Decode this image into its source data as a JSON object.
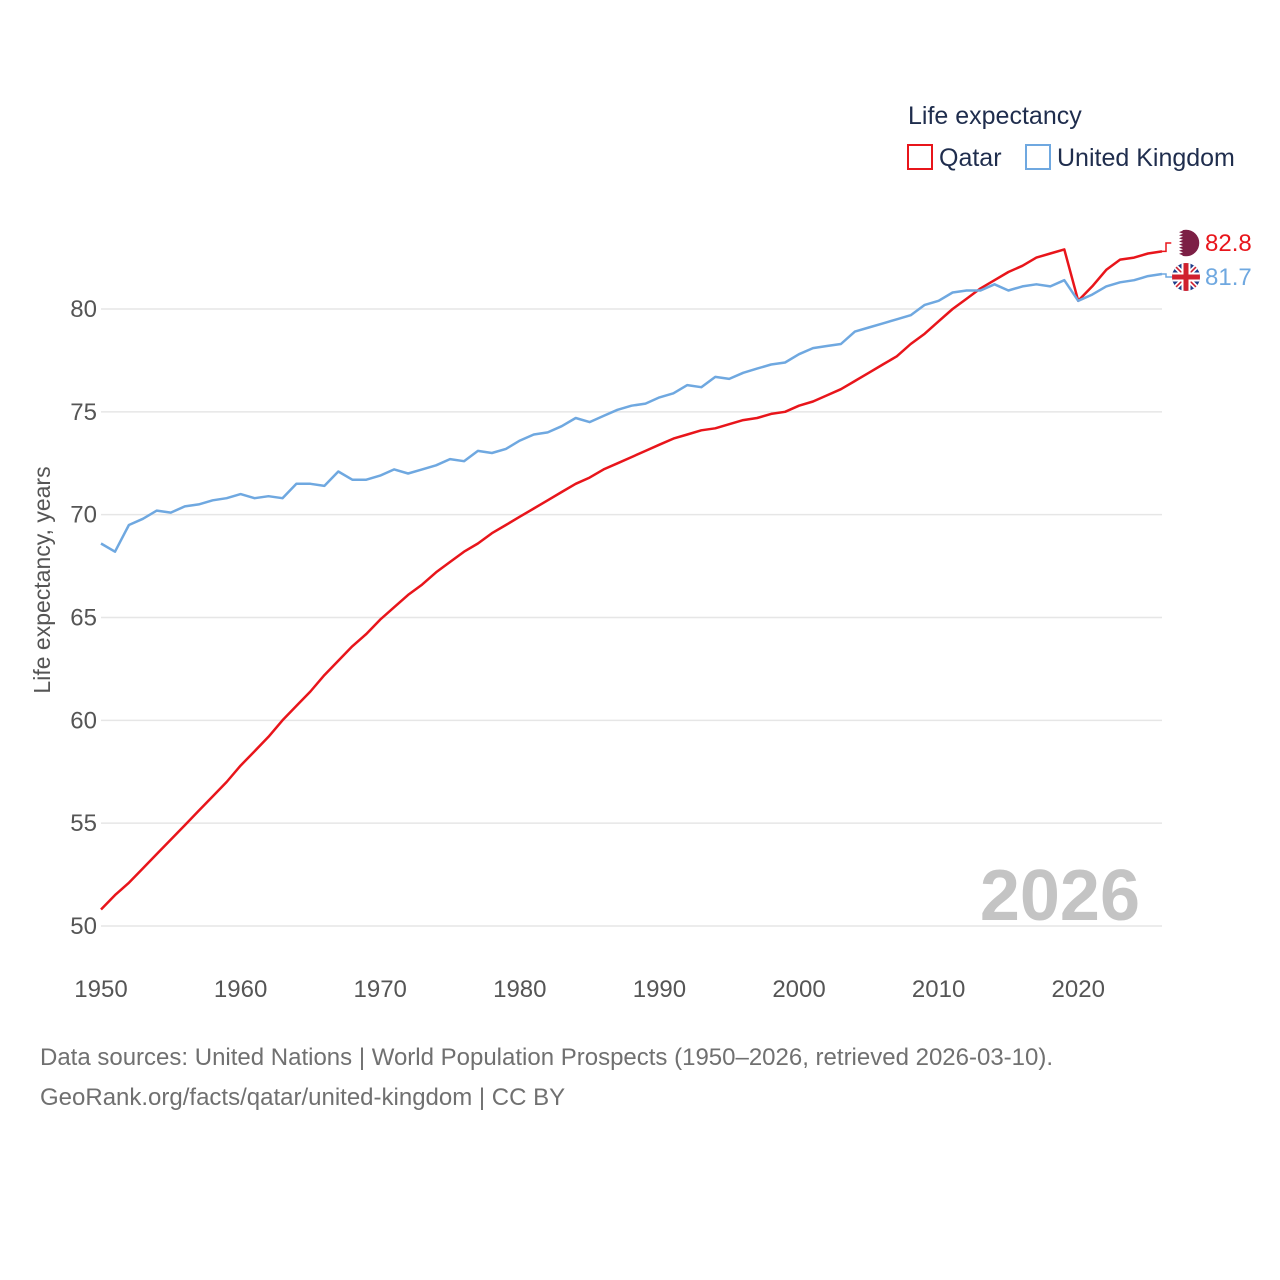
{
  "chart_data": {
    "type": "line",
    "title": "Life expectancy",
    "ylabel": "Life expectancy, years",
    "xlabel": "",
    "xlim": [
      1950,
      2026
    ],
    "ylim": [
      50,
      84.5
    ],
    "yticks": [
      50,
      55,
      60,
      65,
      70,
      75,
      80
    ],
    "xticks": [
      1950,
      1960,
      1970,
      1980,
      1990,
      2000,
      2010,
      2020
    ],
    "current_year": "2026",
    "legend_title": "Life expectancy",
    "legend_position": "top-right",
    "grid": true,
    "series": [
      {
        "name": "Qatar",
        "color": "#e8151b",
        "end_label": "82.8",
        "flag": "qatar-flag",
        "x": [
          1950,
          1951,
          1952,
          1953,
          1954,
          1955,
          1956,
          1957,
          1958,
          1959,
          1960,
          1961,
          1962,
          1963,
          1964,
          1965,
          1966,
          1967,
          1968,
          1969,
          1970,
          1971,
          1972,
          1973,
          1974,
          1975,
          1976,
          1977,
          1978,
          1979,
          1980,
          1981,
          1982,
          1983,
          1984,
          1985,
          1986,
          1987,
          1988,
          1989,
          1990,
          1991,
          1992,
          1993,
          1994,
          1995,
          1996,
          1997,
          1998,
          1999,
          2000,
          2001,
          2002,
          2003,
          2004,
          2005,
          2006,
          2007,
          2008,
          2009,
          2010,
          2011,
          2012,
          2013,
          2014,
          2015,
          2016,
          2017,
          2018,
          2019,
          2020,
          2021,
          2022,
          2023,
          2024,
          2025,
          2026
        ],
        "values": [
          50.8,
          51.5,
          52.1,
          52.8,
          53.5,
          54.2,
          54.9,
          55.6,
          56.3,
          57.0,
          57.8,
          58.5,
          59.2,
          60.0,
          60.7,
          61.4,
          62.2,
          62.9,
          63.6,
          64.2,
          64.9,
          65.5,
          66.1,
          66.6,
          67.2,
          67.7,
          68.2,
          68.6,
          69.1,
          69.5,
          69.9,
          70.3,
          70.7,
          71.1,
          71.5,
          71.8,
          72.2,
          72.5,
          72.8,
          73.1,
          73.4,
          73.7,
          73.9,
          74.1,
          74.2,
          74.4,
          74.6,
          74.7,
          74.9,
          75.0,
          75.3,
          75.5,
          75.8,
          76.1,
          76.5,
          76.9,
          77.3,
          77.7,
          78.3,
          78.8,
          79.4,
          80.0,
          80.5,
          81.0,
          81.4,
          81.8,
          82.1,
          82.5,
          82.7,
          82.9,
          80.4,
          81.1,
          81.9,
          82.4,
          82.5,
          82.7,
          82.8
        ]
      },
      {
        "name": "United Kingdom",
        "color": "#6fa8e0",
        "end_label": "81.7",
        "flag": "uk-flag",
        "x": [
          1950,
          1951,
          1952,
          1953,
          1954,
          1955,
          1956,
          1957,
          1958,
          1959,
          1960,
          1961,
          1962,
          1963,
          1964,
          1965,
          1966,
          1967,
          1968,
          1969,
          1970,
          1971,
          1972,
          1973,
          1974,
          1975,
          1976,
          1977,
          1978,
          1979,
          1980,
          1981,
          1982,
          1983,
          1984,
          1985,
          1986,
          1987,
          1988,
          1989,
          1990,
          1991,
          1992,
          1993,
          1994,
          1995,
          1996,
          1997,
          1998,
          1999,
          2000,
          2001,
          2002,
          2003,
          2004,
          2005,
          2006,
          2007,
          2008,
          2009,
          2010,
          2011,
          2012,
          2013,
          2014,
          2015,
          2016,
          2017,
          2018,
          2019,
          2020,
          2021,
          2022,
          2023,
          2024,
          2025,
          2026
        ],
        "values": [
          68.6,
          68.2,
          69.5,
          69.8,
          70.2,
          70.1,
          70.4,
          70.5,
          70.7,
          70.8,
          71.0,
          70.8,
          70.9,
          70.8,
          71.5,
          71.5,
          71.4,
          72.1,
          71.7,
          71.7,
          71.9,
          72.2,
          72.0,
          72.2,
          72.4,
          72.7,
          72.6,
          73.1,
          73.0,
          73.2,
          73.6,
          73.9,
          74.0,
          74.3,
          74.7,
          74.5,
          74.8,
          75.1,
          75.3,
          75.4,
          75.7,
          75.9,
          76.3,
          76.2,
          76.7,
          76.6,
          76.9,
          77.1,
          77.3,
          77.4,
          77.8,
          78.1,
          78.2,
          78.3,
          78.9,
          79.1,
          79.3,
          79.5,
          79.7,
          80.2,
          80.4,
          80.8,
          80.9,
          80.9,
          81.2,
          80.9,
          81.1,
          81.2,
          81.1,
          81.4,
          80.4,
          80.7,
          81.1,
          81.3,
          81.4,
          81.6,
          81.7
        ]
      }
    ]
  },
  "footer": {
    "sources": "Data sources: United Nations | World Population Prospects (1950–2026, retrieved 2026-03-10).",
    "credit": "GeoRank.org/facts/qatar/united-kingdom | CC BY"
  }
}
